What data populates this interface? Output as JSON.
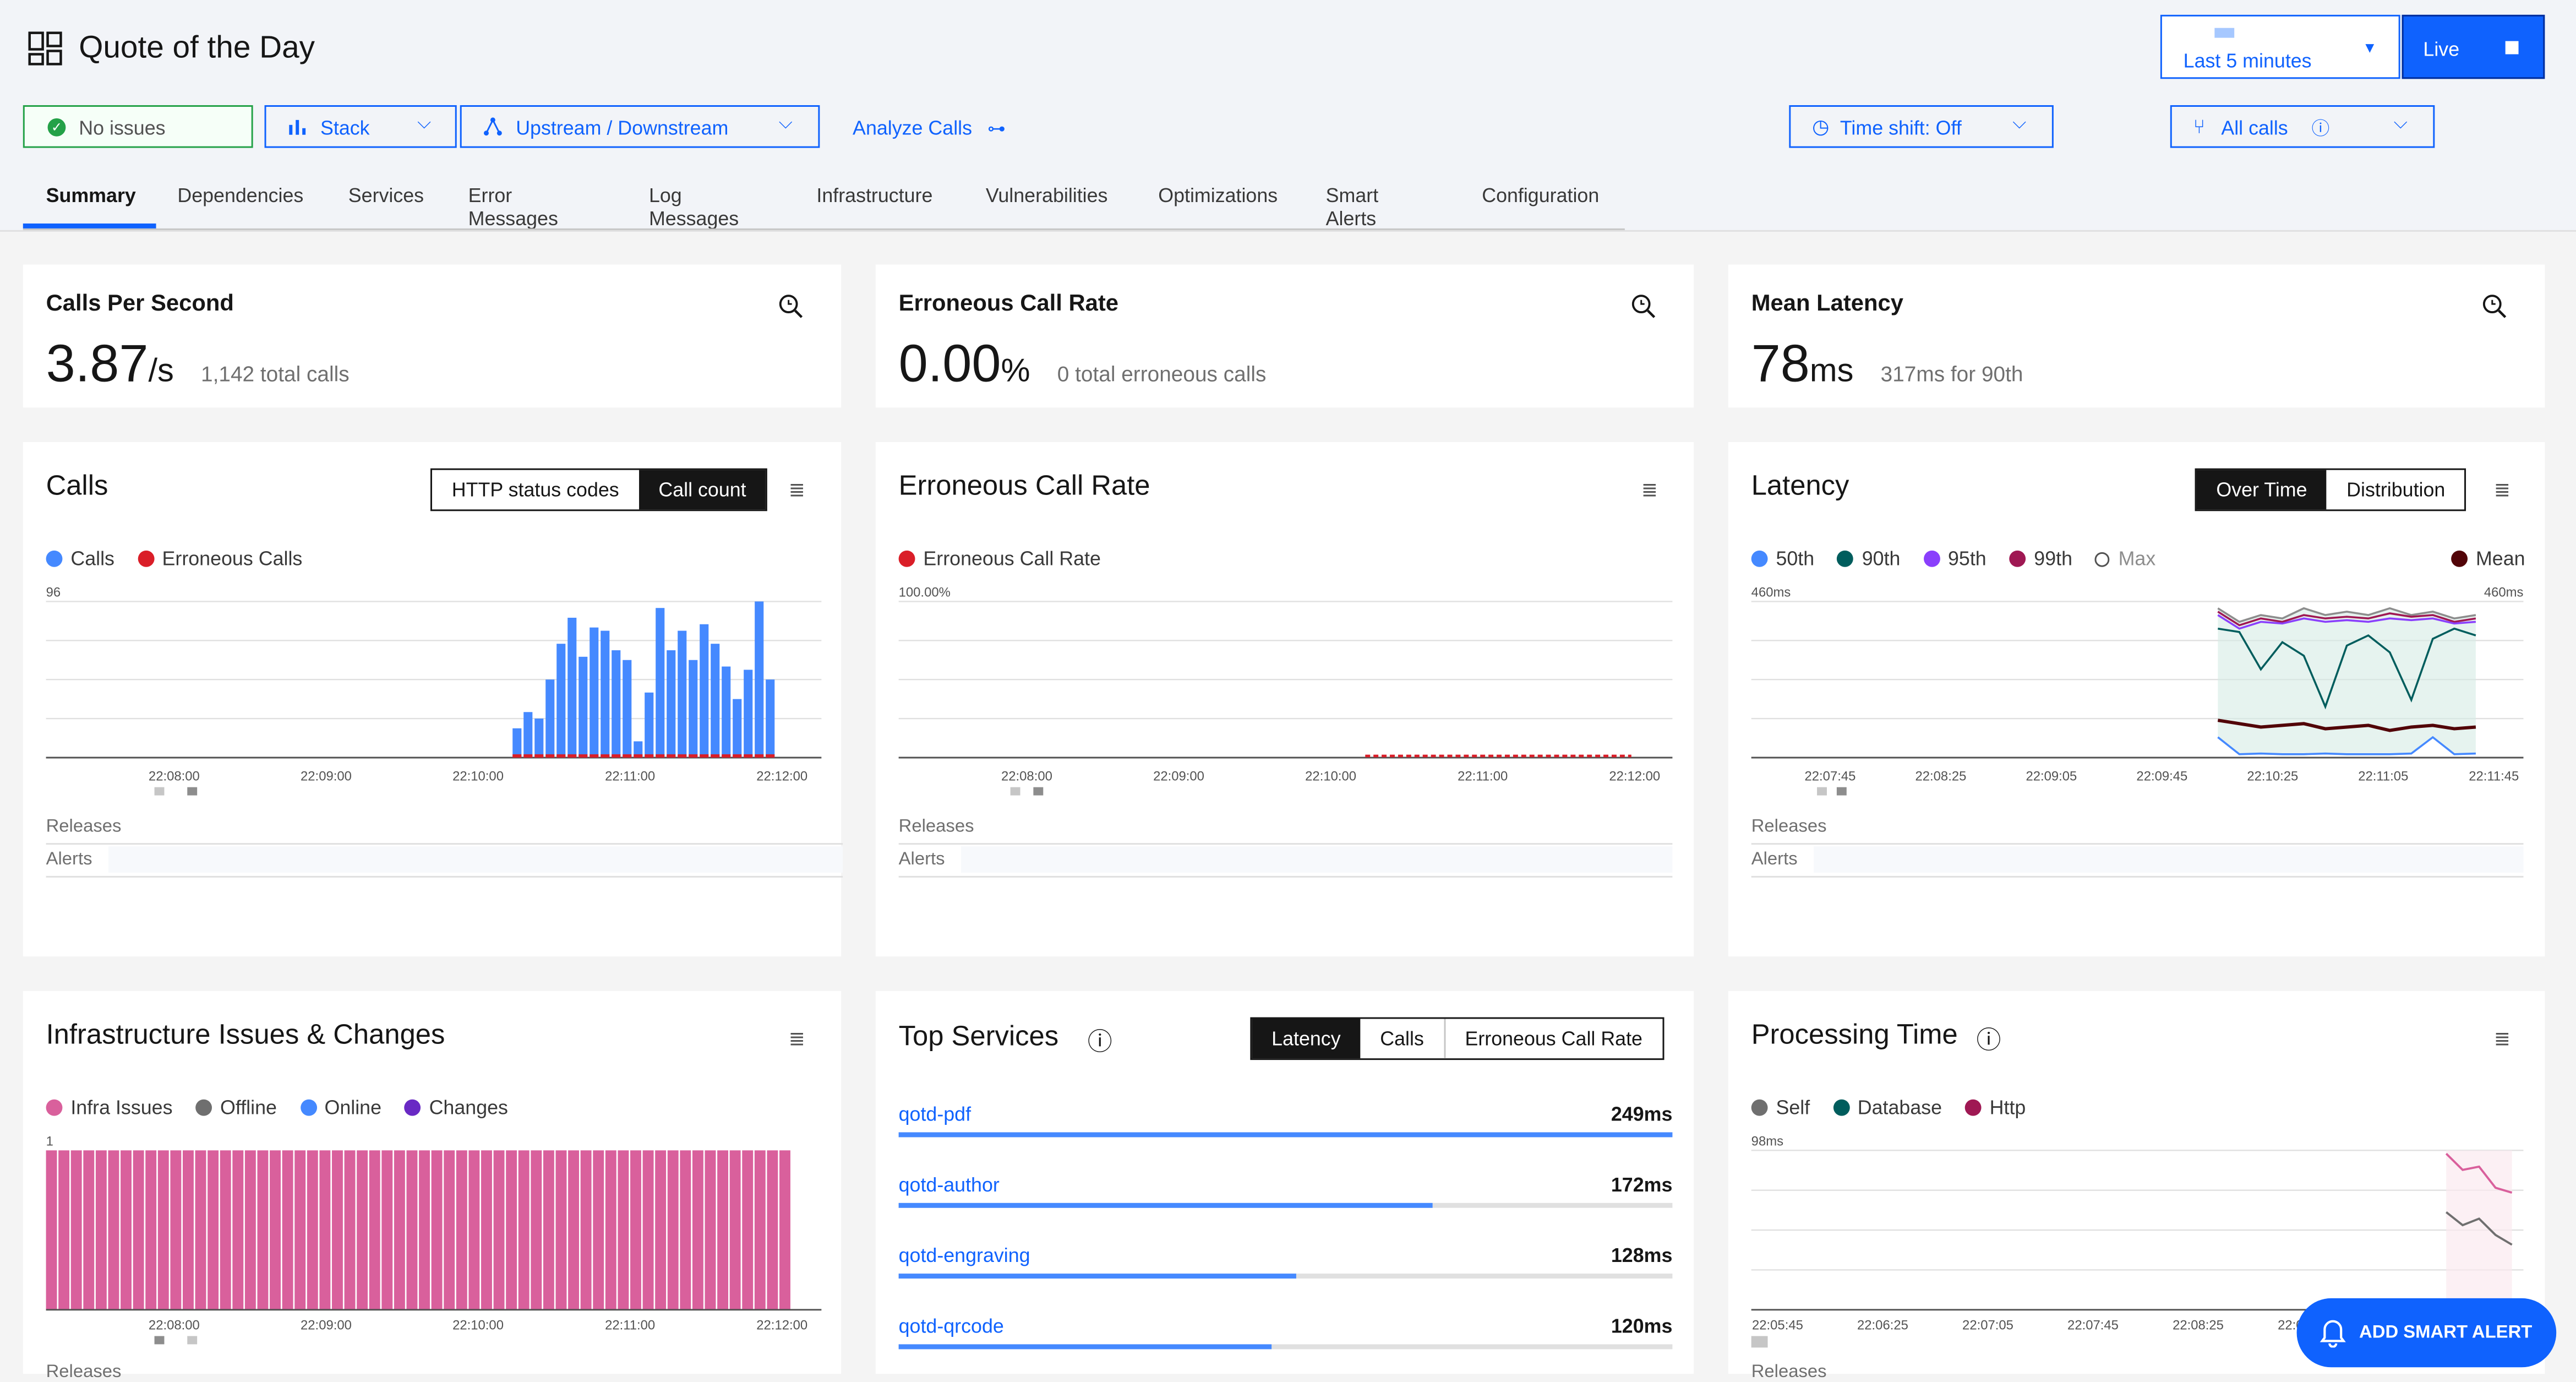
{
  "app": {
    "title": "Quote of the Day"
  },
  "timepicker": {
    "label": "Last 5 minutes",
    "live_label": "Live"
  },
  "toolbar": {
    "status": "No issues",
    "stack": "Stack",
    "upstream": "Upstream / Downstream",
    "analyze": "Analyze Calls",
    "timeshift": "Time shift: Off",
    "allcalls": "All calls"
  },
  "tabs": [
    "Summary",
    "Dependencies",
    "Services",
    "Error Messages",
    "Log Messages",
    "Infrastructure",
    "Vulnerabilities",
    "Optimizations",
    "Smart Alerts",
    "Configuration"
  ],
  "kpis": {
    "cps": {
      "title": "Calls Per Second",
      "value": "3.87",
      "unit": "/s",
      "sub": "1,142 total calls"
    },
    "ecr": {
      "title": "Erroneous Call Rate",
      "value": "0.00",
      "unit": "%",
      "sub": "0 total erroneous calls"
    },
    "lat": {
      "title": "Mean Latency",
      "value": "78",
      "unit": "ms",
      "sub": "317ms for 90th"
    }
  },
  "panels": {
    "calls": {
      "title": "Calls",
      "seg": [
        "HTTP status codes",
        "Call count"
      ],
      "legend": [
        "Calls",
        "Erroneous Calls"
      ],
      "ymax_label": "96"
    },
    "ecr": {
      "title": "Erroneous Call Rate",
      "legend": [
        "Erroneous Call Rate"
      ],
      "ymax_label": "100.00%"
    },
    "latency": {
      "title": "Latency",
      "seg": [
        "Over Time",
        "Distribution"
      ],
      "legend": [
        "50th",
        "90th",
        "95th",
        "99th",
        "Max"
      ],
      "legend_right": "Mean",
      "ymax_label": "460ms",
      "ymax_right": "460ms"
    },
    "infra": {
      "title": "Infrastructure Issues & Changes",
      "legend": [
        "Infra Issues",
        "Offline",
        "Online",
        "Changes"
      ],
      "ymax_label": "1"
    },
    "top": {
      "title": "Top Services",
      "seg": [
        "Latency",
        "Calls",
        "Erroneous Call Rate"
      ]
    },
    "proc": {
      "title": "Processing Time",
      "legend": [
        "Self",
        "Database",
        "Http"
      ],
      "ymax_label": "98ms"
    },
    "releases": "Releases",
    "alerts": "Alerts"
  },
  "ticks": {
    "a": [
      "22:08:00",
      "22:09:00",
      "22:10:00",
      "22:11:00",
      "22:12:00"
    ],
    "lat": [
      "22:07:45",
      "22:08:25",
      "22:09:05",
      "22:09:45",
      "22:10:25",
      "22:11:05",
      "22:11:45"
    ],
    "proc": [
      "22:05:45",
      "22:06:25",
      "22:07:05",
      "22:07:45",
      "22:08:25",
      "22:09:05"
    ]
  },
  "top_services": [
    {
      "name": "qotd-pdf",
      "value": "249ms",
      "ms": 249
    },
    {
      "name": "qotd-author",
      "value": "172ms",
      "ms": 172
    },
    {
      "name": "qotd-engraving",
      "value": "128ms",
      "ms": 128
    },
    {
      "name": "qotd-qrcode",
      "value": "120ms",
      "ms": 120
    }
  ],
  "add_alert": "ADD SMART ALERT",
  "colors": {
    "accent": "#0f62fe",
    "calls": "#4589ff",
    "error": "#da1e28",
    "infra": "#d9609c"
  },
  "chart_data": [
    {
      "type": "bar",
      "title": "Calls",
      "ylim": [
        0,
        96
      ],
      "series": [
        {
          "name": "Calls",
          "values": [
            18,
            28,
            24,
            48,
            70,
            86,
            62,
            80,
            78,
            66,
            60,
            10,
            40,
            92,
            66,
            78,
            60,
            82,
            70,
            56,
            36,
            54,
            96,
            48
          ]
        },
        {
          "name": "Erroneous Calls",
          "values": [
            0,
            0,
            0,
            0,
            0,
            0,
            0,
            0,
            0,
            0,
            0,
            0,
            0,
            0,
            0,
            0,
            0,
            0,
            0,
            0,
            0,
            0,
            0,
            0
          ]
        }
      ]
    },
    {
      "type": "line",
      "title": "Erroneous Call Rate",
      "ylim": [
        0,
        100
      ],
      "series": [
        {
          "name": "Erroneous Call Rate",
          "values": [
            0,
            0,
            0,
            0,
            0,
            0,
            0,
            0,
            0,
            0,
            0
          ]
        }
      ]
    },
    {
      "type": "line",
      "title": "Latency",
      "ylim": [
        0,
        460
      ],
      "series": [
        {
          "name": "Max",
          "values": [
            440,
            400,
            420,
            410,
            440,
            420,
            430,
            420,
            440,
            420,
            430,
            410,
            420
          ]
        },
        {
          "name": "99th",
          "values": [
            430,
            390,
            410,
            400,
            420,
            410,
            415,
            410,
            425,
            415,
            420,
            400,
            410
          ]
        },
        {
          "name": "95th",
          "values": [
            420,
            380,
            400,
            395,
            410,
            400,
            405,
            400,
            410,
            405,
            410,
            395,
            400
          ]
        },
        {
          "name": "90th",
          "values": [
            380,
            370,
            260,
            340,
            300,
            150,
            330,
            360,
            310,
            170,
            350,
            380,
            360
          ]
        },
        {
          "name": "Mean",
          "values": [
            110,
            100,
            90,
            95,
            100,
            85,
            90,
            95,
            80,
            90,
            95,
            85,
            90
          ]
        },
        {
          "name": "50th",
          "values": [
            60,
            10,
            12,
            10,
            10,
            12,
            10,
            10,
            10,
            12,
            60,
            10,
            12
          ]
        }
      ]
    },
    {
      "type": "bar",
      "title": "Infrastructure Issues & Changes",
      "ylim": [
        0,
        1
      ],
      "series": [
        {
          "name": "Infra Issues",
          "values": [
            1,
            1,
            1,
            1,
            1,
            1,
            1,
            1,
            1,
            1,
            1,
            1,
            1,
            1,
            1,
            1,
            1,
            1,
            1,
            1,
            1,
            1,
            1,
            1,
            1,
            1,
            1,
            1,
            1,
            1,
            1,
            1,
            1,
            1,
            1,
            1,
            1,
            1,
            1,
            1,
            1,
            1,
            1,
            1,
            1,
            1,
            1,
            1,
            1,
            1,
            1,
            1,
            1,
            1,
            1,
            1,
            1,
            1,
            1,
            1
          ]
        }
      ]
    },
    {
      "type": "line",
      "title": "Processing Time",
      "ylim": [
        0,
        98
      ],
      "series": [
        {
          "name": "Http",
          "values": [
            96,
            86,
            88,
            75,
            72
          ]
        },
        {
          "name": "Self",
          "values": [
            60,
            52,
            56,
            46,
            40
          ]
        }
      ]
    }
  ]
}
